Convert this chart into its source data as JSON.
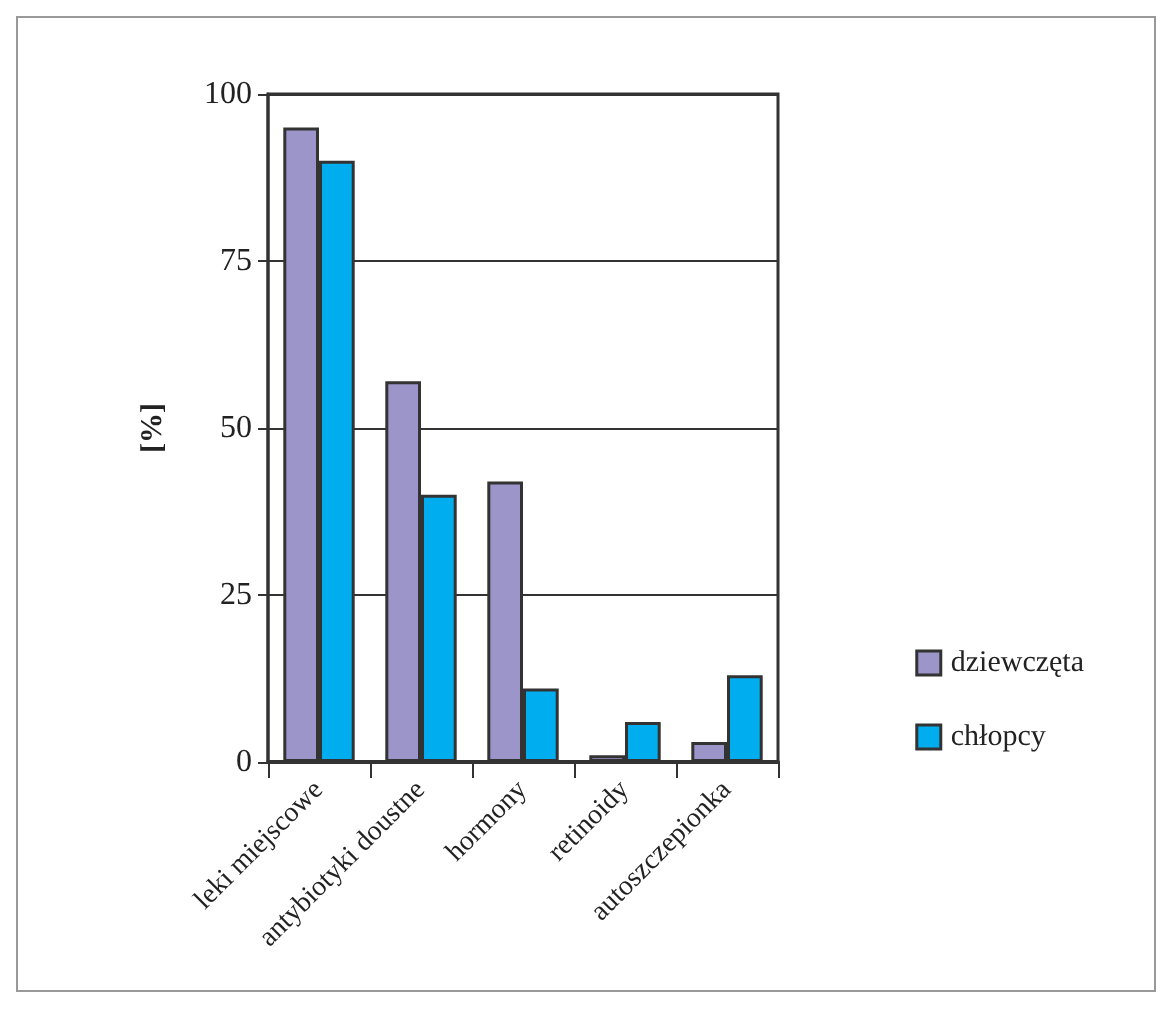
{
  "chart_data": {
    "type": "bar",
    "ylabel": "[%]",
    "categories": [
      "leki miejscowe",
      "antybiotyki doustne",
      "hormony",
      "retinoidy",
      "autoszczepionka"
    ],
    "series": [
      {
        "name": "dziewczęta",
        "color": "#9b95c9",
        "values": [
          95,
          57,
          42,
          1,
          3
        ]
      },
      {
        "name": "chłopcy",
        "color": "#00aeef",
        "values": [
          90,
          40,
          11,
          6,
          13
        ]
      }
    ],
    "ylim": [
      0,
      100
    ],
    "yticks": [
      0,
      25,
      50,
      75,
      100
    ],
    "grid": "y",
    "legend": "right"
  }
}
